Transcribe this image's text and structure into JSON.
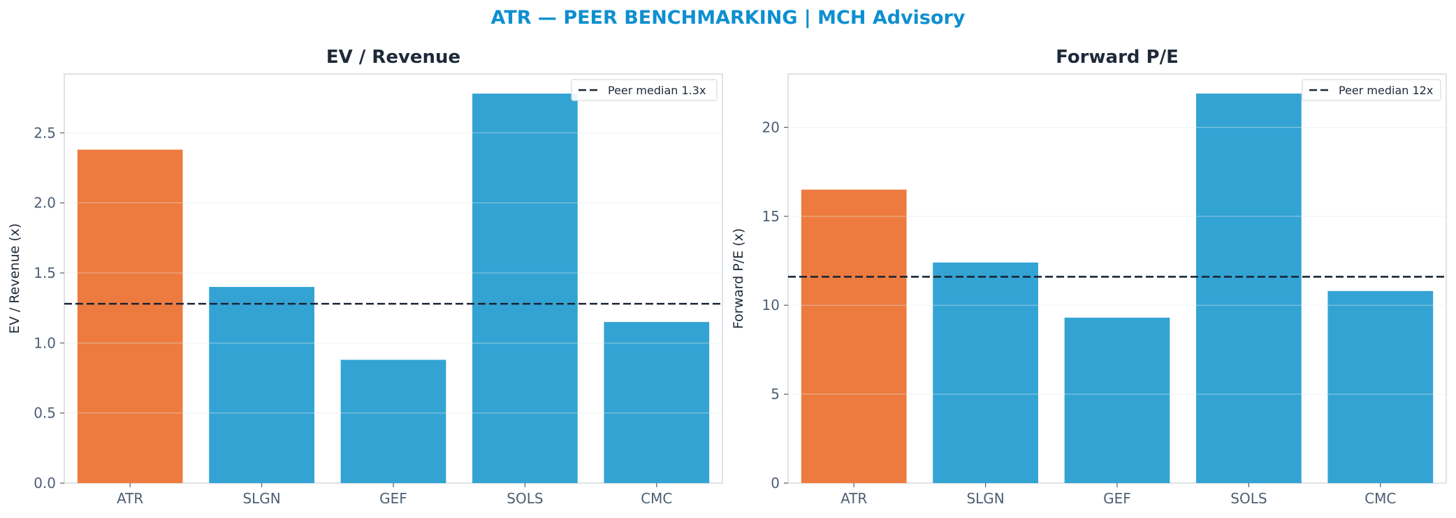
{
  "suptitle": "ATR — PEER BENCHMARKING | MCH Advisory",
  "colors": {
    "title": "#0e8fd0",
    "highlight": "#ed7b3f",
    "peer": "#33a3d4",
    "median_line": "#1a2535",
    "panel_title": "#1e2a3a",
    "tick_text": "#4d5f73",
    "axis_frame": "#d5d9de"
  },
  "chart_data": [
    {
      "type": "bar",
      "title": "EV / Revenue",
      "xlabel": "",
      "ylabel": "EV / Revenue (x)",
      "categories": [
        "ATR",
        "SLGN",
        "GEF",
        "SOLS",
        "CMC"
      ],
      "values": [
        2.38,
        1.4,
        0.88,
        2.78,
        1.15
      ],
      "highlight": "ATR",
      "ylim": [
        0,
        2.92
      ],
      "yticks": [
        0.0,
        0.5,
        1.0,
        1.5,
        2.0,
        2.5
      ],
      "ytick_labels": [
        "0.0",
        "0.5",
        "1.0",
        "1.5",
        "2.0",
        "2.5"
      ],
      "reference_line": {
        "value": 1.28,
        "label": "Peer median 1.3x",
        "style": "dashed"
      },
      "legend": "top-right",
      "grid": "horizontal"
    },
    {
      "type": "bar",
      "title": "Forward P/E",
      "xlabel": "",
      "ylabel": "Forward P/E (x)",
      "categories": [
        "ATR",
        "SLGN",
        "GEF",
        "SOLS",
        "CMC"
      ],
      "values": [
        16.5,
        12.4,
        9.3,
        21.9,
        10.8
      ],
      "highlight": "ATR",
      "ylim": [
        0,
        23.0
      ],
      "yticks": [
        0,
        5,
        10,
        15,
        20
      ],
      "ytick_labels": [
        "0",
        "5",
        "10",
        "15",
        "20"
      ],
      "reference_line": {
        "value": 11.6,
        "label": "Peer median 12x",
        "style": "dashed"
      },
      "legend": "top-right",
      "grid": "horizontal"
    }
  ]
}
